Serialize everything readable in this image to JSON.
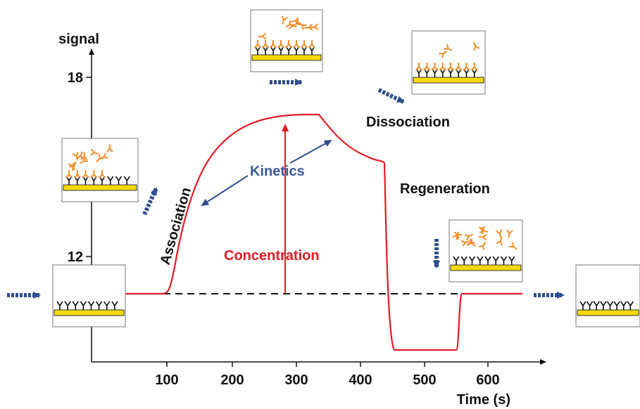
{
  "axes": {
    "y_label": "signal",
    "y_ticks": [
      "18",
      "12"
    ],
    "x_ticks": [
      "100",
      "200",
      "300",
      "400",
      "500",
      "600"
    ],
    "x_label": "Time  (s)"
  },
  "annotations": {
    "association": "Association",
    "kinetics": "Kinetics",
    "concentration": "Concentration",
    "dissociation": "Dissociation",
    "regeneration": "Regeneration"
  }
}
